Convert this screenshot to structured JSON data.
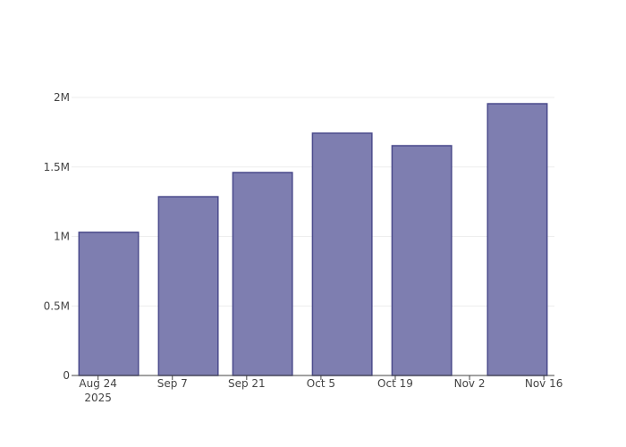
{
  "chart_data": {
    "type": "bar",
    "x": [
      "2025-08-26",
      "2025-09-10",
      "2025-09-24",
      "2025-10-09",
      "2025-10-24",
      "2025-11-11"
    ],
    "values": [
      1030000,
      1286000,
      1460000,
      1743000,
      1653000,
      1955000
    ],
    "color": "#7e7eb0",
    "edge_color": "#4b4b8c",
    "xlim": [
      "2025-08-19",
      "2025-11-18"
    ],
    "xticks": [
      {
        "value": "2025-08-24",
        "label": "Aug 24\n2025"
      },
      {
        "value": "2025-09-07",
        "label": "Sep 7"
      },
      {
        "value": "2025-09-21",
        "label": "Sep 21"
      },
      {
        "value": "2025-10-05",
        "label": "Oct 5"
      },
      {
        "value": "2025-10-19",
        "label": "Oct 19"
      },
      {
        "value": "2025-11-02",
        "label": "Nov 2"
      },
      {
        "value": "2025-11-16",
        "label": "Nov 16"
      }
    ],
    "ylim": [
      0,
      2058000
    ],
    "yticks": [
      0,
      {
        "value": 500000,
        "label": "0.5M"
      },
      {
        "value": 1000000,
        "label": "1M"
      },
      {
        "value": 1500000,
        "label": "1.5M"
      },
      {
        "value": 2000000,
        "label": "2M"
      }
    ],
    "grid": true
  }
}
